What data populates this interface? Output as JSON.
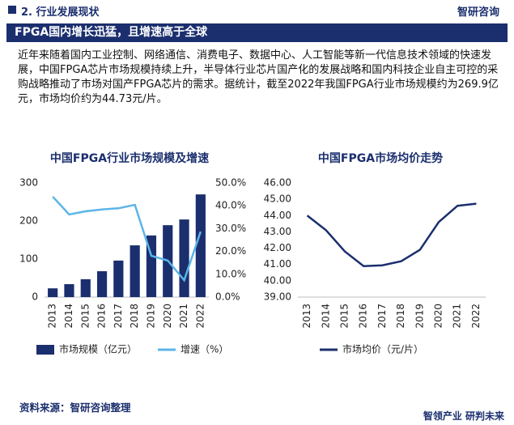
{
  "header": {
    "section": "2. 行业发展现状",
    "brand": "智研咨询"
  },
  "banner": "FPGA国内增长迅猛，且增速高于全球",
  "paragraph": "近年来随着国内工业控制、网络通信、消费电子、数据中心、人工智能等新一代信息技术领域的快速发展，中国FPGA芯片市场规模持续上升，半导体行业芯片国产化的发展战略和国内科技企业自主可控的采购战略推动了市场对国产FPGA芯片的需求。据统计，截至2022年我国FPGA行业市场规模约为269.9亿元，市场均价约为44.73元/片。",
  "chart_data": [
    {
      "type": "bar",
      "title": "中国FPGA行业市场规模及增速",
      "categories": [
        "2013",
        "2014",
        "2015",
        "2016",
        "2017",
        "2018",
        "2019",
        "2020",
        "2021",
        "2022"
      ],
      "series": [
        {
          "name": "市场规模（亿元）",
          "type": "bar",
          "color": "#1b2f6e",
          "values": [
            23,
            34,
            47,
            68,
            96,
            136,
            162,
            189,
            204,
            269.9
          ]
        },
        {
          "name": "增速（%）",
          "type": "line",
          "axis": "y2",
          "color": "#5bb5e8",
          "values": [
            44,
            36.2,
            37.6,
            38.4,
            38.9,
            40.4,
            18.1,
            16,
            7.4,
            28.7
          ]
        }
      ],
      "ylim": [
        0,
        300
      ],
      "yticks": [
        0,
        100,
        200,
        300
      ],
      "y2lim": [
        0,
        50
      ],
      "y2ticks": [
        {
          "value": 0,
          "label": "0.0%"
        },
        {
          "value": 10,
          "label": "10.0%"
        },
        {
          "value": 20,
          "label": "20.0%"
        },
        {
          "value": 30,
          "label": "30.0%"
        },
        {
          "value": 40,
          "label": "40.0%"
        },
        {
          "value": 50,
          "label": "50.0%"
        }
      ]
    },
    {
      "type": "line",
      "title": "中国FPGA市场均价走势",
      "categories": [
        "2013",
        "2014",
        "2015",
        "2016",
        "2017",
        "2018",
        "2019",
        "2020",
        "2021",
        "2022"
      ],
      "series": [
        {
          "name": "市场均价（元/片）",
          "color": "#1b2f6e",
          "values": [
            44.0,
            43.1,
            41.8,
            40.9,
            40.95,
            41.2,
            41.9,
            43.6,
            44.6,
            44.73
          ]
        }
      ],
      "ylim": [
        39,
        46
      ],
      "yticks": [
        {
          "value": 39,
          "label": "39.00"
        },
        {
          "value": 40,
          "label": "40.00"
        },
        {
          "value": 41,
          "label": "41.00"
        },
        {
          "value": 42,
          "label": "42.00"
        },
        {
          "value": 43,
          "label": "43.00"
        },
        {
          "value": 44,
          "label": "44.00"
        },
        {
          "value": 45,
          "label": "45.00"
        },
        {
          "value": 46,
          "label": "46.00"
        }
      ]
    }
  ],
  "source": "资料来源：智研咨询整理",
  "footer": "智领产业 研判未来"
}
